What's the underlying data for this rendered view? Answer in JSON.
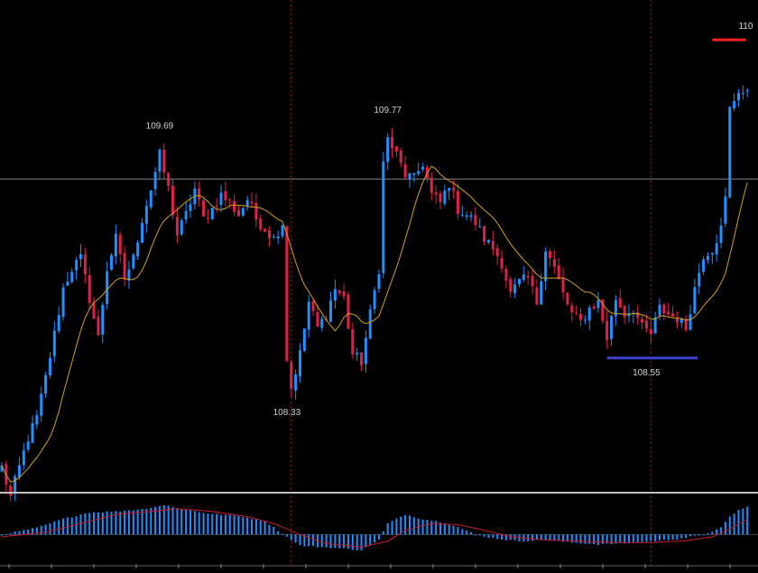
{
  "chart_data": [
    {
      "type": "candlestick",
      "title": "",
      "colors": {
        "up": "#1e90ff",
        "down": "#e0204a",
        "moving_average": "#d4a017",
        "horizontal_level": "#808080",
        "period_separator": "#b22222",
        "high_marker": "#ff2020",
        "low_marker": "#4040d0",
        "label": "#d0d0d0"
      },
      "ylim": [
        107.95,
        110.4
      ],
      "horizontal_level": 109.5,
      "period_separators_at_bar": [
        66,
        148
      ],
      "annotations": [
        {
          "text": "109.69",
          "bar": 36,
          "value": 109.69
        },
        {
          "text": "109.77",
          "bar": 88,
          "value": 109.77
        },
        {
          "text": "108.33",
          "bar": 65,
          "value": 108.33
        },
        {
          "text": "108.55",
          "bar": 147,
          "value": 108.55
        },
        {
          "text": "110",
          "bar": 168,
          "value": 110.2
        }
      ],
      "markers": [
        {
          "kind": "low",
          "value": 108.6,
          "from_bar": 138,
          "to_bar": 157
        },
        {
          "kind": "high",
          "value": 110.2,
          "from_bar": 162,
          "to_bar": 168
        }
      ],
      "anchors": [
        [
          0,
          108.05
        ],
        [
          2,
          107.9
        ],
        [
          4,
          108.05
        ],
        [
          6,
          108.2
        ],
        [
          8,
          108.3
        ],
        [
          10,
          108.5
        ],
        [
          12,
          108.72
        ],
        [
          14,
          108.95
        ],
        [
          16,
          109.05
        ],
        [
          18,
          109.1
        ],
        [
          20,
          108.9
        ],
        [
          22,
          108.7
        ],
        [
          24,
          109.05
        ],
        [
          26,
          109.2
        ],
        [
          28,
          109.0
        ],
        [
          30,
          109.1
        ],
        [
          32,
          109.3
        ],
        [
          34,
          109.45
        ],
        [
          36,
          109.62
        ],
        [
          38,
          109.45
        ],
        [
          40,
          109.22
        ],
        [
          42,
          109.32
        ],
        [
          44,
          109.45
        ],
        [
          46,
          109.3
        ],
        [
          48,
          109.35
        ],
        [
          50,
          109.42
        ],
        [
          52,
          109.38
        ],
        [
          54,
          109.32
        ],
        [
          56,
          109.4
        ],
        [
          58,
          109.3
        ],
        [
          60,
          109.25
        ],
        [
          62,
          109.2
        ],
        [
          64,
          109.28
        ],
        [
          65,
          108.6
        ],
        [
          66,
          108.45
        ],
        [
          68,
          108.62
        ],
        [
          70,
          108.88
        ],
        [
          72,
          108.75
        ],
        [
          74,
          108.82
        ],
        [
          76,
          108.95
        ],
        [
          78,
          108.9
        ],
        [
          80,
          108.62
        ],
        [
          82,
          108.58
        ],
        [
          84,
          108.82
        ],
        [
          86,
          109.05
        ],
        [
          87,
          109.58
        ],
        [
          88,
          109.7
        ],
        [
          90,
          109.62
        ],
        [
          92,
          109.52
        ],
        [
          94,
          109.5
        ],
        [
          96,
          109.58
        ],
        [
          98,
          109.42
        ],
        [
          100,
          109.38
        ],
        [
          102,
          109.48
        ],
        [
          104,
          109.35
        ],
        [
          106,
          109.32
        ],
        [
          108,
          109.28
        ],
        [
          110,
          109.2
        ],
        [
          112,
          109.15
        ],
        [
          114,
          109.08
        ],
        [
          116,
          108.92
        ],
        [
          118,
          108.98
        ],
        [
          120,
          109.0
        ],
        [
          122,
          108.88
        ],
        [
          124,
          109.15
        ],
        [
          126,
          109.05
        ],
        [
          128,
          108.92
        ],
        [
          130,
          108.82
        ],
        [
          132,
          108.78
        ],
        [
          134,
          108.85
        ],
        [
          136,
          108.88
        ],
        [
          138,
          108.7
        ],
        [
          140,
          108.9
        ],
        [
          142,
          108.82
        ],
        [
          144,
          108.85
        ],
        [
          146,
          108.75
        ],
        [
          148,
          108.72
        ],
        [
          150,
          108.85
        ],
        [
          152,
          108.82
        ],
        [
          154,
          108.8
        ],
        [
          156,
          108.75
        ],
        [
          158,
          108.95
        ],
        [
          160,
          109.12
        ],
        [
          162,
          109.15
        ],
        [
          164,
          109.25
        ],
        [
          165,
          109.4
        ],
        [
          166,
          109.85
        ],
        [
          168,
          109.95
        ],
        [
          170,
          109.92
        ]
      ]
    },
    {
      "type": "bar",
      "title": "",
      "indicator_colors": {
        "histogram": "#1e90ff",
        "signal": "#c81e2e",
        "zero_line": "#404040"
      },
      "ylim": [
        -0.06,
        0.09
      ],
      "anchors": [
        [
          0,
          0.0
        ],
        [
          8,
          0.015
        ],
        [
          14,
          0.035
        ],
        [
          20,
          0.05
        ],
        [
          26,
          0.052
        ],
        [
          32,
          0.057
        ],
        [
          37,
          0.066
        ],
        [
          42,
          0.056
        ],
        [
          48,
          0.046
        ],
        [
          54,
          0.042
        ],
        [
          60,
          0.03
        ],
        [
          65,
          -0.005
        ],
        [
          68,
          -0.025
        ],
        [
          76,
          -0.03
        ],
        [
          82,
          -0.035
        ],
        [
          86,
          -0.012
        ],
        [
          88,
          0.025
        ],
        [
          92,
          0.045
        ],
        [
          96,
          0.035
        ],
        [
          102,
          0.025
        ],
        [
          108,
          0.0
        ],
        [
          112,
          -0.008
        ],
        [
          118,
          -0.015
        ],
        [
          124,
          -0.012
        ],
        [
          130,
          -0.018
        ],
        [
          136,
          -0.022
        ],
        [
          142,
          -0.02
        ],
        [
          148,
          -0.015
        ],
        [
          154,
          -0.01
        ],
        [
          160,
          0.0
        ],
        [
          164,
          0.015
        ],
        [
          166,
          0.04
        ],
        [
          168,
          0.055
        ],
        [
          170,
          0.062
        ]
      ],
      "signal_anchors": [
        [
          0,
          -0.005
        ],
        [
          10,
          0.005
        ],
        [
          18,
          0.025
        ],
        [
          26,
          0.045
        ],
        [
          34,
          0.052
        ],
        [
          40,
          0.058
        ],
        [
          48,
          0.052
        ],
        [
          56,
          0.04
        ],
        [
          62,
          0.025
        ],
        [
          68,
          0.0
        ],
        [
          74,
          -0.02
        ],
        [
          82,
          -0.028
        ],
        [
          88,
          -0.015
        ],
        [
          92,
          0.01
        ],
        [
          98,
          0.025
        ],
        [
          104,
          0.022
        ],
        [
          110,
          0.01
        ],
        [
          116,
          -0.005
        ],
        [
          124,
          -0.012
        ],
        [
          132,
          -0.015
        ],
        [
          140,
          -0.018
        ],
        [
          148,
          -0.018
        ],
        [
          156,
          -0.014
        ],
        [
          162,
          -0.005
        ],
        [
          166,
          0.012
        ],
        [
          170,
          0.035
        ]
      ]
    }
  ]
}
